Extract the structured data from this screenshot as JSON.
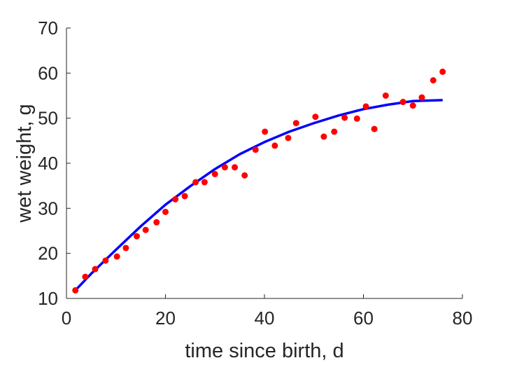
{
  "chart_data": {
    "type": "scatter",
    "title": "",
    "xlabel": "time since birth, d",
    "ylabel": "wet weight, g",
    "xlim": [
      0,
      80
    ],
    "ylim": [
      10,
      70
    ],
    "xticks": [
      0,
      20,
      40,
      60,
      80
    ],
    "yticks": [
      10,
      20,
      30,
      40,
      50,
      60,
      70
    ],
    "grid": false,
    "series": [
      {
        "kind": "points",
        "color": "#ff0000",
        "x": [
          1.8,
          3.8,
          5.8,
          7.9,
          10.2,
          12.0,
          14.2,
          16.0,
          18.2,
          20.0,
          22.0,
          23.9,
          26.1,
          27.9,
          30.0,
          32.0,
          34.0,
          36.0,
          38.2,
          40.1,
          42.1,
          44.8,
          46.4,
          50.3,
          52.0,
          54.1,
          56.2,
          58.7,
          60.5,
          62.2,
          64.5,
          68.0,
          70.0,
          71.8,
          74.1,
          76.0
        ],
        "y": [
          11.8,
          14.8,
          16.5,
          18.4,
          19.3,
          21.2,
          23.8,
          25.2,
          26.9,
          29.2,
          32.0,
          32.7,
          35.8,
          35.8,
          37.6,
          39.1,
          39.1,
          37.3,
          43.0,
          47.0,
          43.9,
          45.6,
          48.9,
          50.3,
          45.9,
          47.0,
          50.1,
          49.9,
          52.6,
          47.6,
          55.0,
          53.6,
          52.8,
          54.6,
          58.4,
          60.3
        ]
      },
      {
        "kind": "curve",
        "color": "#0000ff",
        "x": [
          1.8,
          5,
          10,
          15,
          20,
          25,
          30,
          35,
          40,
          45,
          50,
          55,
          60,
          65,
          70,
          76.0
        ],
        "y": [
          11.8,
          15.5,
          20.8,
          26.0,
          30.8,
          34.9,
          38.7,
          42.0,
          44.7,
          47.0,
          48.9,
          50.6,
          52.0,
          53.0,
          53.8,
          54.0
        ]
      }
    ]
  }
}
